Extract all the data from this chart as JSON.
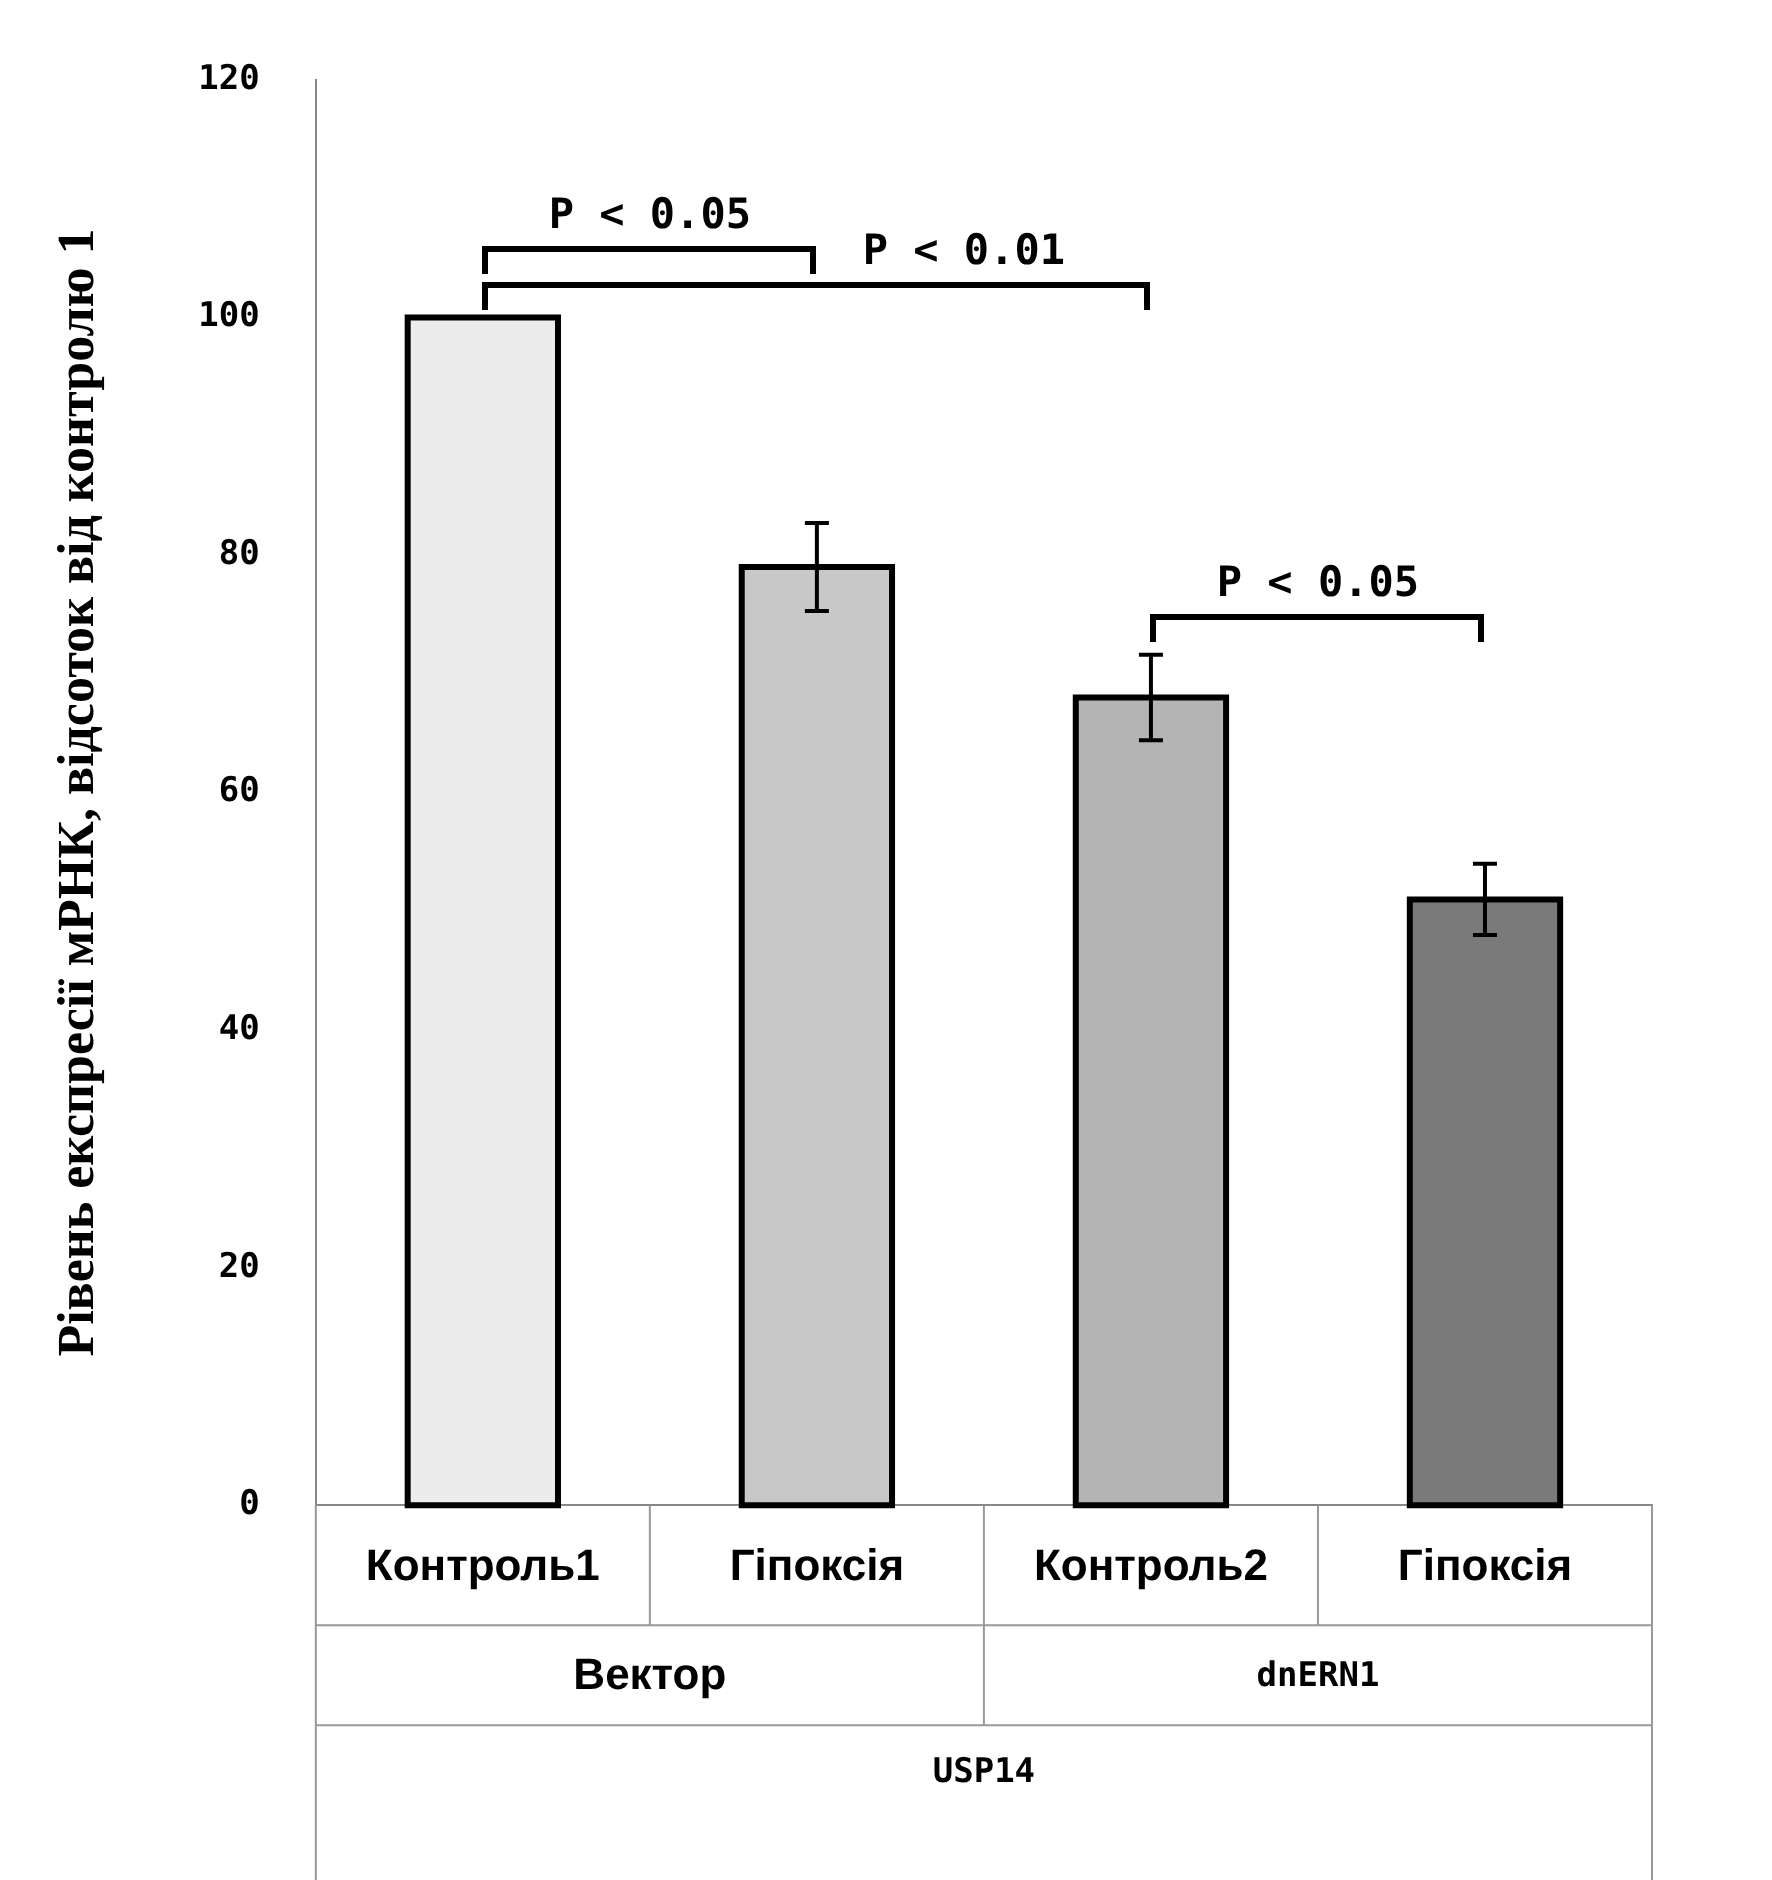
{
  "chart_data": {
    "type": "bar",
    "ylabel": "Рівень експресії мРНК, відсоток від контролю 1",
    "categories": [
      "Контроль1",
      "Гіпоксія",
      "Контроль2",
      "Гіпоксія"
    ],
    "values": [
      100,
      79,
      68,
      51
    ],
    "colors": [
      "#ececec",
      "#c8c8c8",
      "#b4b4b4",
      "#7a7a7a"
    ],
    "errors": [
      null,
      3.7,
      3.6,
      3
    ],
    "ylim": [
      0,
      120
    ],
    "yticks": [
      0,
      20,
      40,
      60,
      80,
      100,
      120
    ],
    "grid": false,
    "legend": false,
    "annotations": [
      "P < 0.05",
      "P < 0.01",
      "P < 0.05",
      "Вектор",
      "dnERN1",
      "USP14"
    ]
  }
}
